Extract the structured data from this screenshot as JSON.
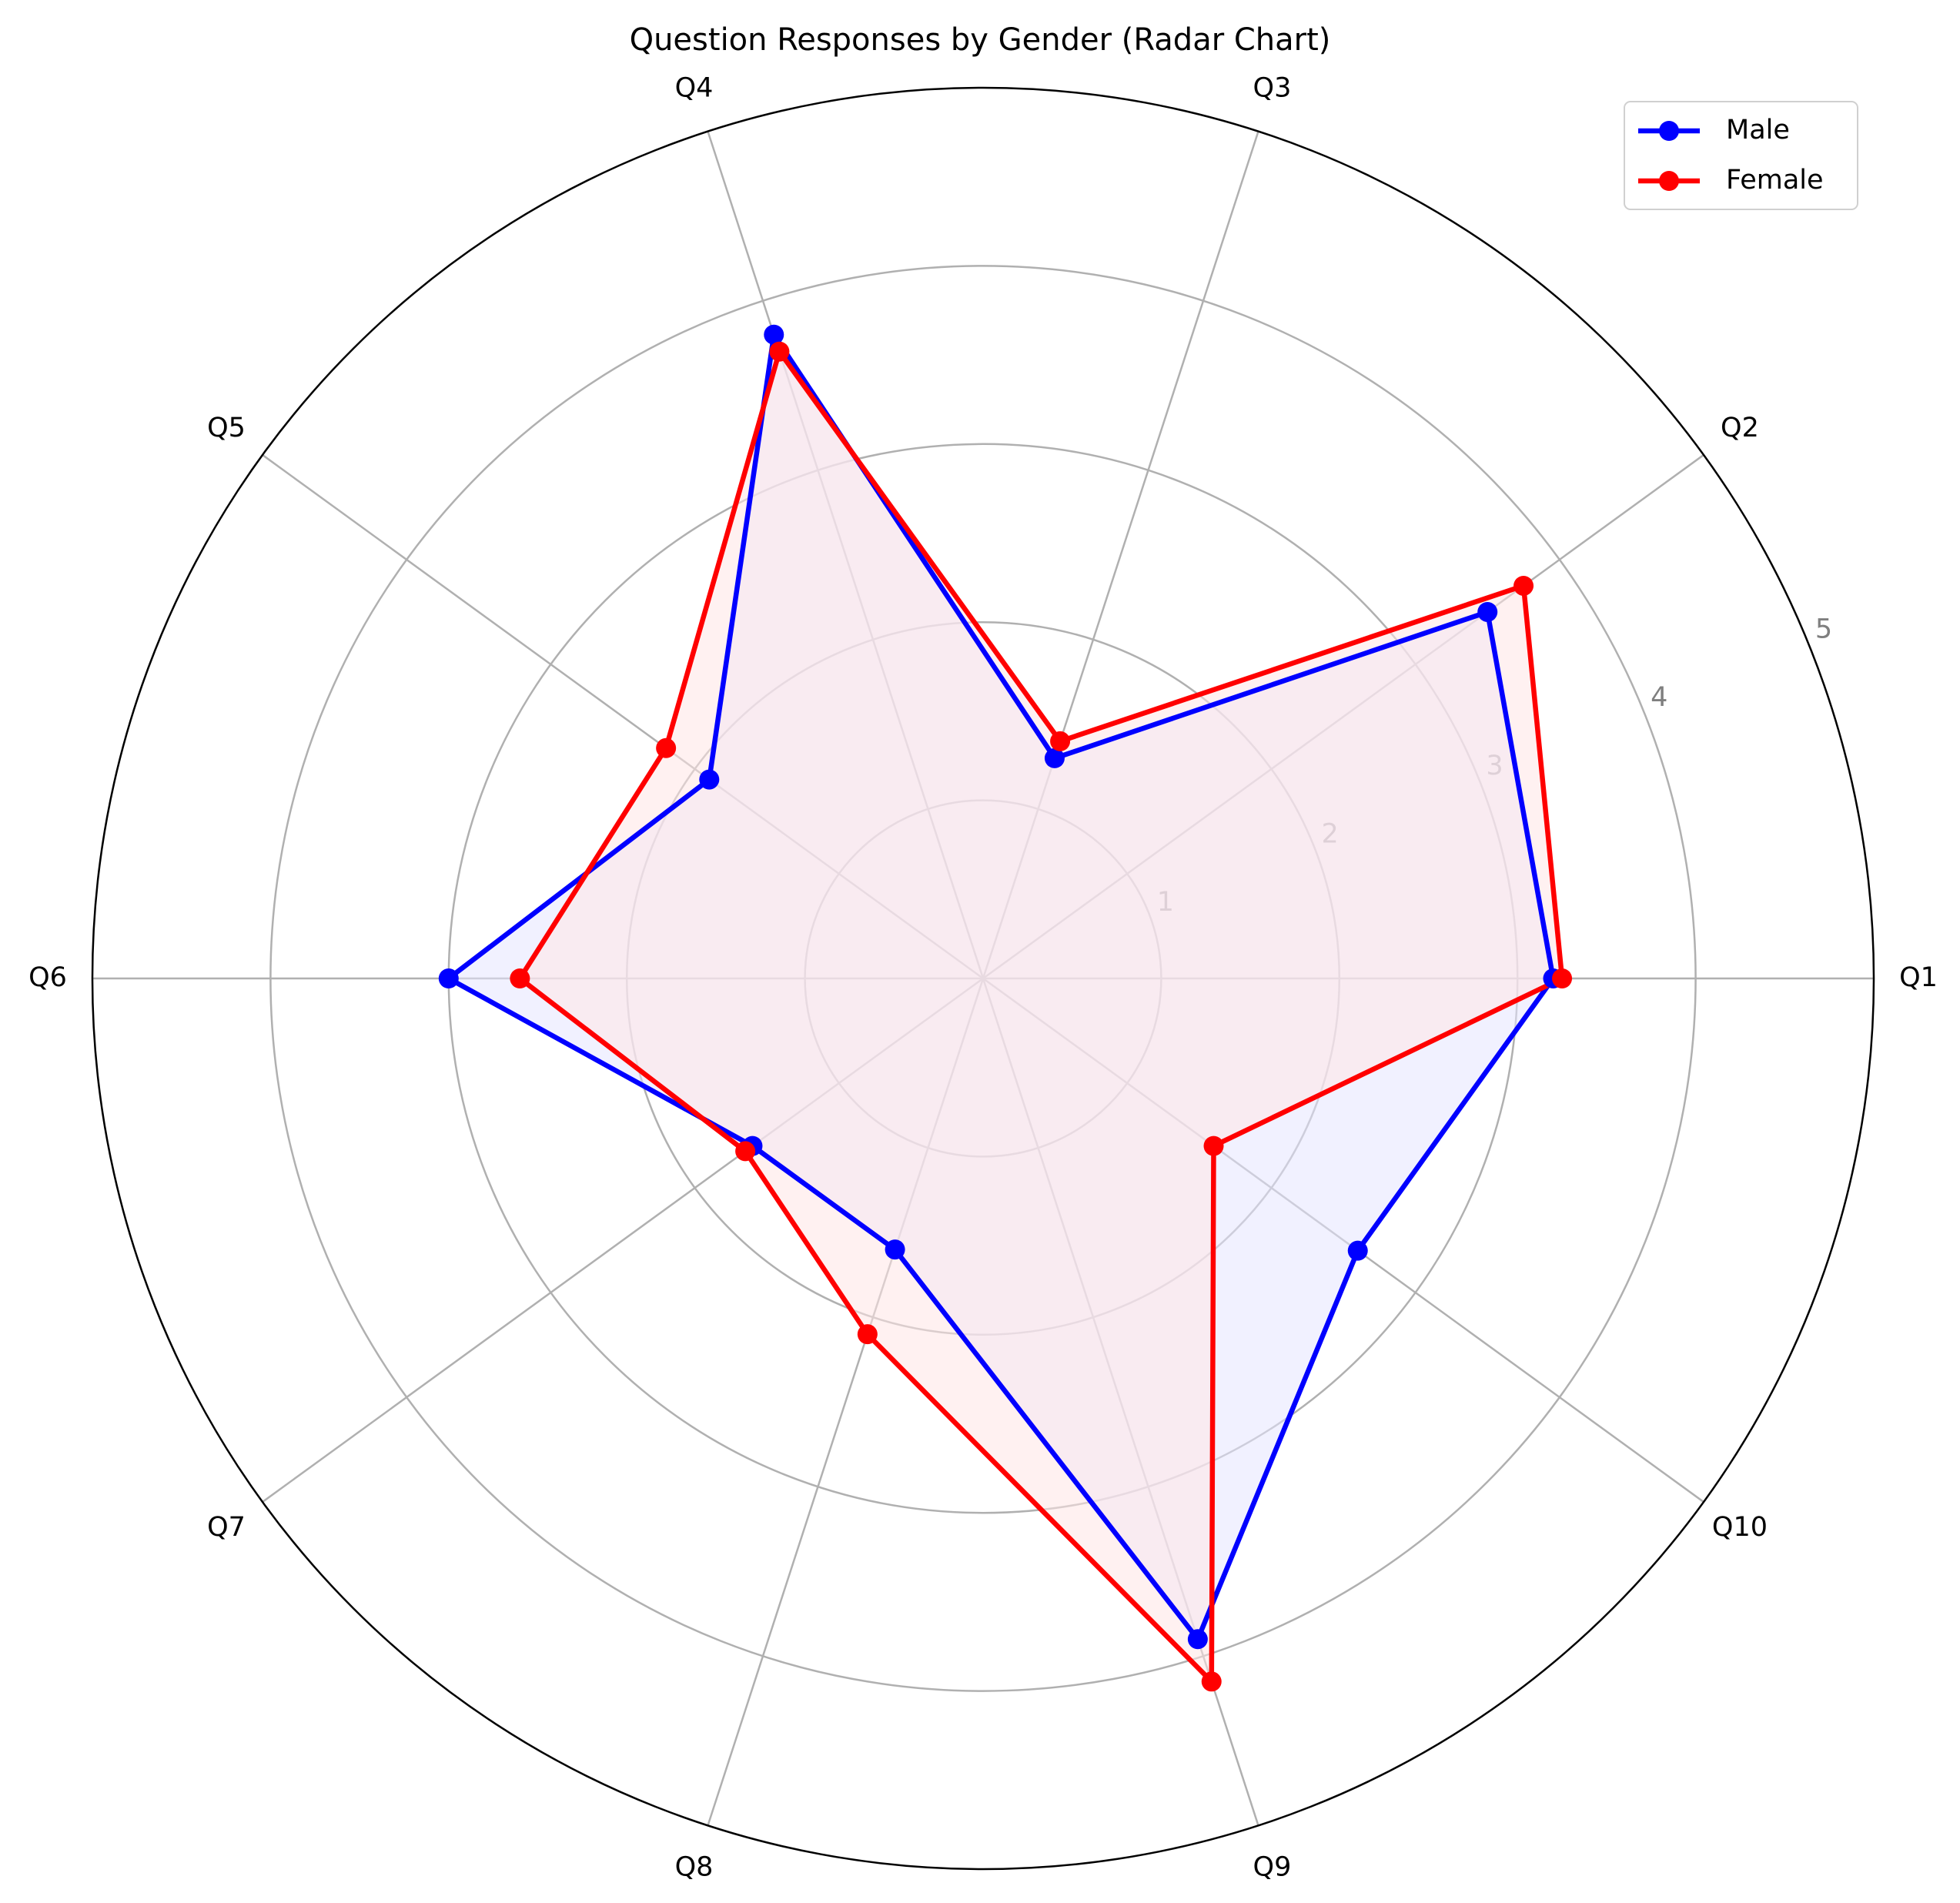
{
  "chart_data": {
    "type": "radar",
    "title": "Question Responses by Gender (Radar Chart)",
    "categories": [
      "Q1",
      "Q2",
      "Q3",
      "Q4",
      "Q5",
      "Q6",
      "Q7",
      "Q8",
      "Q9",
      "Q10"
    ],
    "radial_ticks": [
      "1",
      "2",
      "3",
      "4",
      "5"
    ],
    "rlim": [
      0,
      5
    ],
    "grid": true,
    "legend_position": "top-right",
    "series": [
      {
        "name": "Male",
        "color": "#0000ff",
        "fill": "#e6e6ff",
        "values": [
          3.2,
          3.5,
          1.3,
          3.8,
          1.9,
          3.0,
          1.6,
          1.6,
          3.9,
          2.6
        ]
      },
      {
        "name": "Female",
        "color": "#ff0000",
        "fill": "#ffe6e6",
        "values": [
          3.25,
          3.75,
          1.4,
          3.7,
          2.2,
          2.6,
          1.65,
          2.1,
          4.15,
          1.6
        ]
      }
    ]
  }
}
